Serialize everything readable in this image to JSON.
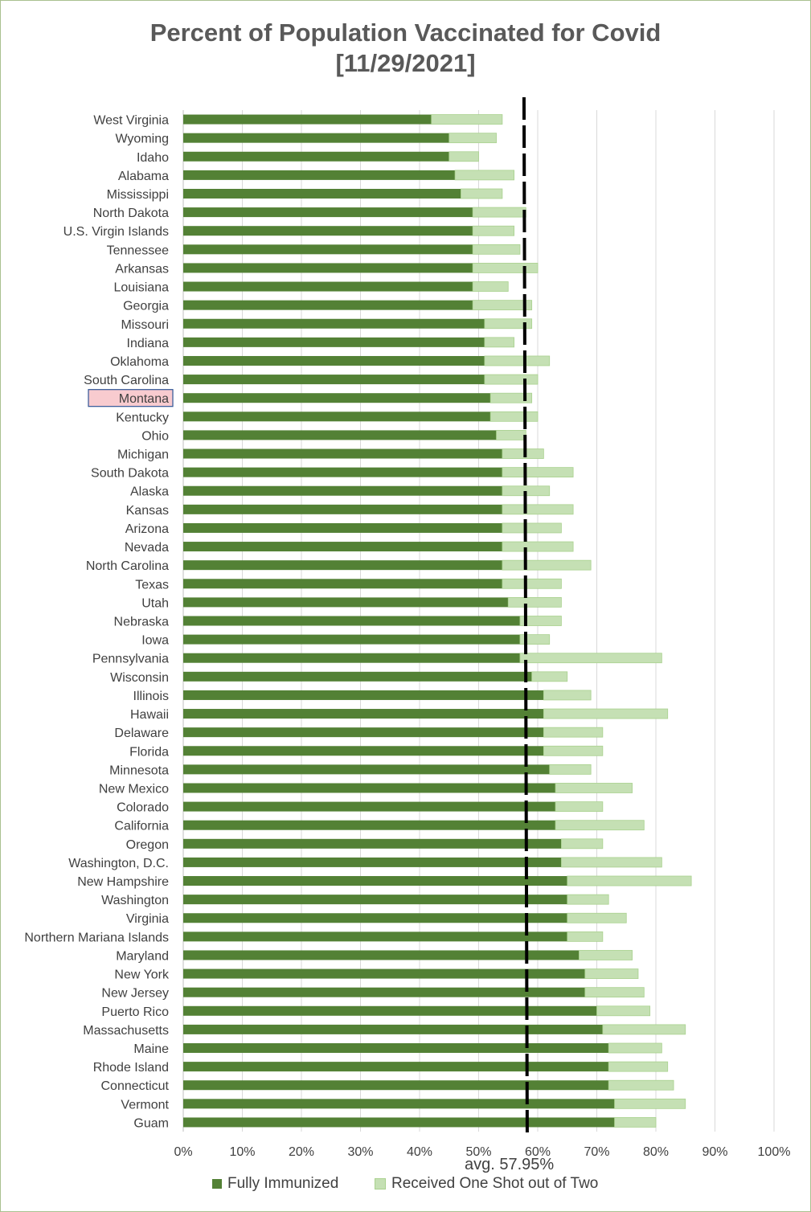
{
  "chart_data": {
    "type": "bar",
    "orientation": "horizontal",
    "stacked": true,
    "title": "Percent of Population Vaccinated for Covid",
    "subtitle": "[11/29/2021]",
    "categories": [
      "West Virginia",
      "Wyoming",
      "Idaho",
      "Alabama",
      "Mississippi",
      "North Dakota",
      "U.S. Virgin Islands",
      "Tennessee",
      "Arkansas",
      "Louisiana",
      "Georgia",
      "Missouri",
      "Indiana",
      "Oklahoma",
      "South Carolina",
      "Montana",
      "Kentucky",
      "Ohio",
      "Michigan",
      "South Dakota",
      "Alaska",
      "Kansas",
      "Arizona",
      "Nevada",
      "North Carolina",
      "Texas",
      "Utah",
      "Nebraska",
      "Iowa",
      "Pennsylvania",
      "Wisconsin",
      "Illinois",
      "Hawaii",
      "Delaware",
      "Florida",
      "Minnesota",
      "New Mexico",
      "Colorado",
      "California",
      "Oregon",
      "Washington, D.C.",
      "New Hampshire",
      "Washington",
      "Virginia",
      "Northern Mariana Islands",
      "Maryland",
      "New York",
      "New Jersey",
      "Puerto Rico",
      "Massachusetts",
      "Maine",
      "Rhode Island",
      "Connecticut",
      "Vermont",
      "Guam"
    ],
    "series": [
      {
        "name": "Fully Immunized",
        "color": "#538135",
        "values": [
          42,
          45,
          45,
          46,
          47,
          49,
          49,
          49,
          49,
          49,
          49,
          51,
          51,
          51,
          51,
          52,
          52,
          53,
          54,
          54,
          54,
          54,
          54,
          54,
          54,
          54,
          55,
          57,
          57,
          57,
          59,
          61,
          61,
          61,
          61,
          62,
          63,
          63,
          63,
          64,
          64,
          65,
          65,
          65,
          65,
          67,
          68,
          68,
          70,
          71,
          72,
          72,
          72,
          73,
          73
        ]
      },
      {
        "name": "Received One Shot out of Two",
        "color": "#c5e0b4",
        "values": [
          12,
          8,
          5,
          10,
          7,
          9,
          7,
          8,
          11,
          6,
          10,
          8,
          5,
          11,
          9,
          7,
          8,
          5,
          7,
          12,
          8,
          12,
          10,
          12,
          15,
          10,
          9,
          7,
          5,
          24,
          6,
          8,
          21,
          10,
          10,
          7,
          13,
          8,
          15,
          7,
          17,
          21,
          7,
          10,
          6,
          9,
          9,
          10,
          9,
          14,
          9,
          10,
          11,
          12,
          7
        ]
      }
    ],
    "highlighted_category": "Montana",
    "highlight_color": "#f8cbcf",
    "average": {
      "value": 57.95,
      "label": "avg. 57.95%"
    },
    "xlim": [
      0,
      100
    ],
    "xticks": [
      "0%",
      "10%",
      "20%",
      "30%",
      "40%",
      "50%",
      "60%",
      "70%",
      "80%",
      "90%",
      "100%"
    ],
    "grid": true,
    "legend": "bottom"
  }
}
